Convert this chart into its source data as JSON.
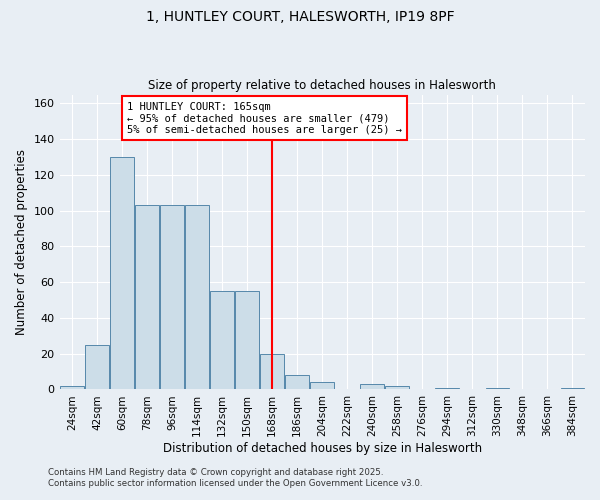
{
  "title": "1, HUNTLEY COURT, HALESWORTH, IP19 8PF",
  "subtitle": "Size of property relative to detached houses in Halesworth",
  "xlabel": "Distribution of detached houses by size in Halesworth",
  "ylabel": "Number of detached properties",
  "bar_labels": [
    "24sqm",
    "42sqm",
    "60sqm",
    "78sqm",
    "96sqm",
    "114sqm",
    "132sqm",
    "150sqm",
    "168sqm",
    "186sqm",
    "204sqm",
    "222sqm",
    "240sqm",
    "258sqm",
    "276sqm",
    "294sqm",
    "312sqm",
    "330sqm",
    "348sqm",
    "366sqm",
    "384sqm"
  ],
  "bar_values": [
    2,
    25,
    130,
    103,
    103,
    103,
    55,
    55,
    20,
    8,
    4,
    0,
    3,
    2,
    0,
    1,
    0,
    1,
    0,
    0,
    1
  ],
  "vline_x_index": 8.0,
  "bar_color": "#ccdde8",
  "bar_edge_color": "#5588aa",
  "vline_color": "red",
  "annotation_box_color": "red",
  "annotation_line1": "1 HUNTLEY COURT: 165sqm",
  "annotation_line2": "← 95% of detached houses are smaller (479)",
  "annotation_line3": "5% of semi-detached houses are larger (25) →",
  "ylim": [
    0,
    165
  ],
  "yticks": [
    0,
    20,
    40,
    60,
    80,
    100,
    120,
    140,
    160
  ],
  "background_color": "#e8eef4",
  "grid_color": "#ffffff",
  "footer_line1": "Contains HM Land Registry data © Crown copyright and database right 2025.",
  "footer_line2": "Contains public sector information licensed under the Open Government Licence v3.0."
}
